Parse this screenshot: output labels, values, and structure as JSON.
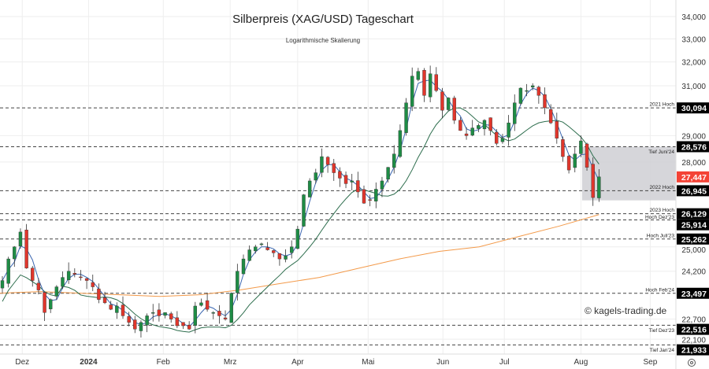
{
  "chart_data": {
    "type": "candlestick",
    "title": "Silberpreis (XAG/USD) Tageschart",
    "subtitle": "Logarithmische Skalierung",
    "scale": "log",
    "ylim": [
      21600,
      34500
    ],
    "y_ticks": [
      "34,000",
      "33,000",
      "32,000",
      "31,000",
      "29,000",
      "28,000",
      "25,000",
      "24,200",
      "22,700",
      "22,100"
    ],
    "y_tick_values": [
      34000,
      33000,
      32000,
      31000,
      29000,
      28000,
      25000,
      24200,
      22700,
      22100
    ],
    "x_ticks": [
      "Dez",
      "2024",
      "Feb",
      "Mrz",
      "Apr",
      "Mai",
      "Jun",
      "Jul",
      "Aug",
      "Sep"
    ],
    "x_tick_index": [
      3.3,
      14.3,
      26.7,
      37.8,
      49,
      60.7,
      73.1,
      83.3,
      96,
      107.5
    ],
    "closes": [
      23.9,
      24.6,
      25.0,
      25.5,
      24.3,
      23.9,
      23.6,
      22.9,
      23.3,
      23.7,
      24.0,
      24.2,
      24.1,
      24.0,
      23.9,
      23.7,
      23.3,
      23.2,
      23.0,
      23.1,
      22.8,
      22.6,
      22.4,
      22.6,
      22.8,
      22.9,
      22.8,
      22.9,
      22.7,
      22.5,
      22.5,
      22.4,
      23.1,
      23.2,
      23.0,
      22.9,
      22.8,
      22.7,
      23.5,
      24.2,
      24.6,
      24.9,
      25.0,
      25.1,
      24.9,
      24.8,
      24.6,
      24.7,
      25.0,
      25.6,
      26.8,
      27.3,
      27.6,
      28.2,
      27.9,
      27.6,
      27.4,
      27.2,
      27.3,
      26.9,
      26.5,
      26.6,
      27.0,
      27.3,
      27.8,
      28.3,
      29.2,
      30.3,
      31.4,
      31.6,
      30.6,
      31.5,
      30.8,
      30.0,
      30.5,
      29.6,
      29.2,
      29.0,
      29.3,
      29.4,
      29.6,
      29.2,
      28.7,
      28.9,
      29.5,
      30.3,
      30.9,
      30.8,
      31.0,
      30.6,
      30.1,
      29.5,
      28.9,
      28.2,
      27.7,
      28.3,
      28.8,
      27.8,
      26.7,
      27.447
    ],
    "ma_long": [
      23.5,
      23.55,
      23.5,
      23.45,
      23.4,
      23.45,
      23.6,
      23.8,
      24.0,
      24.3,
      24.6,
      24.85,
      25.0,
      25.35,
      25.7,
      26.1
    ],
    "ma_short_period": 3,
    "ma_mid_period": 10,
    "current_price": {
      "value": 27447,
      "label": "27,447"
    },
    "levels": [
      {
        "value": 30094,
        "label": "30,094",
        "note": "2021 Hoch"
      },
      {
        "value": 28576,
        "label": "28,576",
        "note": "Tief Juni'24"
      },
      {
        "value": 26945,
        "label": "26,945",
        "note": "2022 Hoch"
      },
      {
        "value": 26129,
        "label": "26,129",
        "note": "2023 Hoch"
      },
      {
        "value": 25914,
        "label": "25,914",
        "note": "Hoch Dez'23"
      },
      {
        "value": 25262,
        "label": "25,262",
        "note": "Hoch Juli'23"
      },
      {
        "value": 23497,
        "label": "23,497",
        "note": "Hoch Feb'24"
      },
      {
        "value": 22516,
        "label": "22,516",
        "note": "Tief Dez'23"
      },
      {
        "value": 21933,
        "label": "21,933",
        "note": "Tief Jan'24"
      }
    ],
    "zone": [
      26600,
      28576
    ],
    "colors": {
      "up": "#1e8c45",
      "down": "#e0362c",
      "ma_short": "#3a66b0",
      "ma_mid": "#2e6e4e",
      "ma_long": "#f39a4a",
      "current": "#f44336"
    }
  },
  "copyright": "© kagels-trading.de"
}
